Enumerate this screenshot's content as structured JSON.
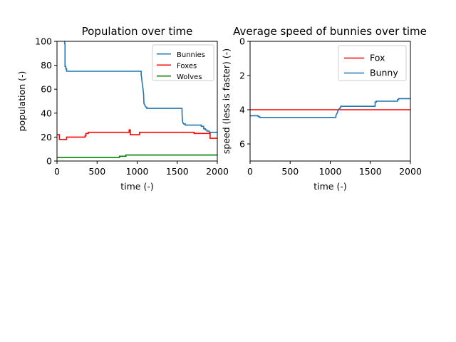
{
  "chart_data": [
    {
      "type": "line",
      "title": "Population over time",
      "xlabel": "time (-)",
      "ylabel": "population (-)",
      "xlim": [
        0,
        2000
      ],
      "ylim": [
        0,
        100
      ],
      "xticks": [
        "0",
        "500",
        "1000",
        "1500",
        "2000"
      ],
      "yticks": [
        "0",
        "20",
        "40",
        "60",
        "80",
        "100"
      ],
      "grid": false,
      "legend_position": "upper-right",
      "series": [
        {
          "name": "Bunnies",
          "color": "#1f77b4",
          "x": [
            95,
            95,
            100,
            100,
            110,
            110,
            120,
            120,
            1050,
            1050,
            1055,
            1060,
            1065,
            1070,
            1075,
            1080,
            1085,
            1095,
            1100,
            1110,
            1120,
            1120,
            1560,
            1560,
            1565,
            1570,
            1580,
            1600,
            1600,
            1700,
            1700,
            1800,
            1800,
            1830,
            1830,
            1850,
            1850,
            1870,
            1870,
            1900,
            1900,
            2000
          ],
          "y": [
            100,
            98,
            98,
            79,
            79,
            77,
            77,
            75,
            75,
            72,
            70,
            67,
            64,
            62,
            59,
            56,
            48,
            47,
            46,
            45,
            45,
            44,
            44,
            40,
            34,
            32,
            31,
            31,
            30,
            30,
            30,
            30,
            29,
            29,
            27,
            27,
            26,
            26,
            25,
            25,
            24,
            24
          ]
        },
        {
          "name": "Foxes",
          "color": "#ff0000",
          "x": [
            0,
            30,
            30,
            120,
            120,
            350,
            350,
            360,
            360,
            390,
            390,
            900,
            900,
            915,
            915,
            1030,
            1030,
            1710,
            1710,
            1910,
            1910,
            2000
          ],
          "y": [
            22,
            22,
            18,
            18,
            20,
            20,
            21,
            21,
            23,
            23,
            24,
            24,
            26,
            26,
            22,
            22,
            24,
            24,
            23,
            23,
            19,
            19
          ]
        },
        {
          "name": "Wolves",
          "color": "#008000",
          "x": [
            0,
            780,
            780,
            860,
            860,
            2000
          ],
          "y": [
            3,
            3,
            4,
            4,
            5,
            5
          ]
        }
      ]
    },
    {
      "type": "line",
      "title": "Average speed of bunnies over time",
      "xlabel": "time (-)",
      "ylabel": "speed (less is faster) (-)",
      "xlim": [
        0,
        2000
      ],
      "ylim": [
        7,
        0
      ],
      "y_inverted": true,
      "xticks": [
        "0",
        "500",
        "1000",
        "1500",
        "2000"
      ],
      "yticks": [
        "0",
        "2",
        "4",
        "6"
      ],
      "grid": false,
      "legend_position": "upper-right",
      "series": [
        {
          "name": "Fox",
          "color": "#ff0000",
          "x": [
            0,
            2000
          ],
          "y": [
            4.0,
            4.0
          ]
        },
        {
          "name": "Bunny",
          "color": "#1f77b4",
          "x": [
            0,
            100,
            100,
            120,
            120,
            1070,
            1070,
            1080,
            1090,
            1100,
            1110,
            1120,
            1130,
            1130,
            1560,
            1560,
            1575,
            1575,
            1840,
            1840,
            1855,
            1855,
            2000
          ],
          "y": [
            4.35,
            4.35,
            4.4,
            4.4,
            4.45,
            4.45,
            4.35,
            4.25,
            4.15,
            4.0,
            3.95,
            3.9,
            3.9,
            3.8,
            3.8,
            3.55,
            3.55,
            3.5,
            3.5,
            3.4,
            3.4,
            3.35,
            3.35
          ]
        }
      ]
    }
  ]
}
